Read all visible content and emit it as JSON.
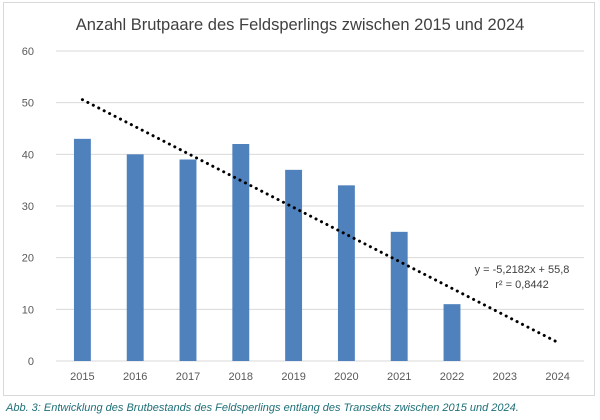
{
  "chart_data": {
    "type": "bar",
    "title": "Anzahl Brutpaare des Feldsperlings zwischen 2015 und 2024",
    "categories": [
      "2015",
      "2016",
      "2017",
      "2018",
      "2019",
      "2020",
      "2021",
      "2022",
      "2023",
      "2024"
    ],
    "values": [
      43,
      40,
      39,
      42,
      37,
      34,
      25,
      11,
      null,
      null
    ],
    "ylim": [
      0,
      60
    ],
    "yticks": [
      "0",
      "10",
      "20",
      "30",
      "40",
      "50",
      "60"
    ],
    "grid": true,
    "legend": "none",
    "trendline": {
      "type": "linear",
      "slope": -5.2182,
      "intercept": 55.8,
      "equation": "y = -5,2182x + 55,8",
      "r2": "r² = 0,8442"
    },
    "colors": {
      "bar": "#4f81bd",
      "trend": "#000000",
      "grid": "#d9d9d9"
    }
  },
  "caption": "Abb. 3: Entwicklung des Brutbestands des Feldsperlings entlang des Transekts zwischen 2015 und 2024."
}
